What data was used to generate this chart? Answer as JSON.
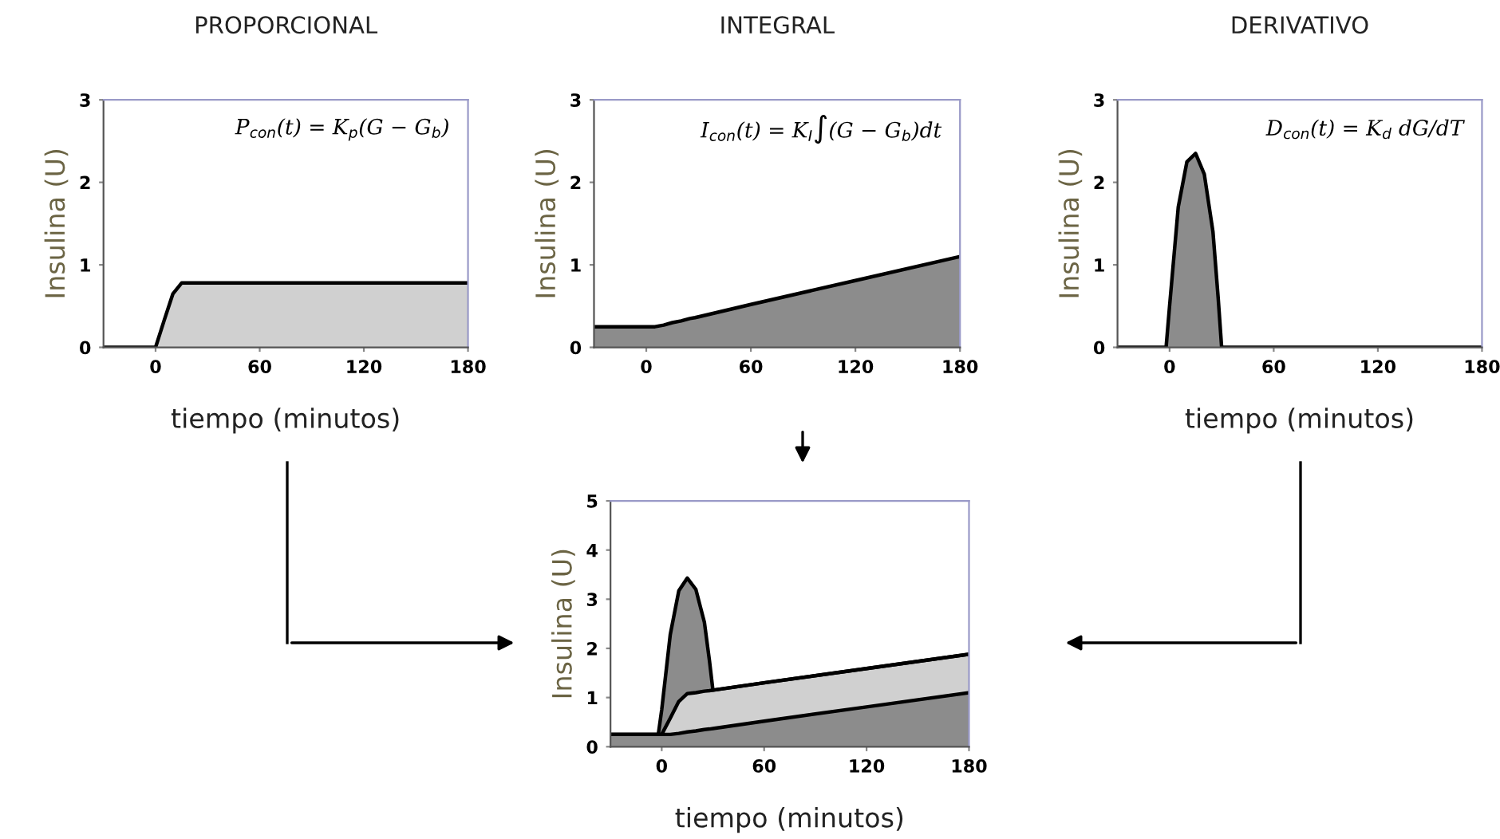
{
  "chart_data": [
    {
      "type": "area",
      "title": "PROPORCIONAL",
      "xlabel": "tiempo (minutos)",
      "ylabel": "Insulina (U)",
      "annotations": [
        "P$_{con}$(t) = K$_{p}$(G − G$_{b}$)"
      ],
      "x": [
        -30,
        -2,
        0,
        5,
        10,
        15,
        20,
        25,
        28,
        30,
        60,
        120,
        180
      ],
      "xlim": [
        -30,
        180
      ],
      "xticks": [
        0,
        60,
        120,
        180
      ],
      "ylim": [
        0,
        3
      ],
      "yticks": [
        0,
        1,
        2,
        3
      ],
      "series": [
        {
          "color": "#d0d0d0",
          "values": [
            0,
            0,
            0,
            0.33,
            0.65,
            0.78,
            0.78,
            0.78,
            0.78,
            0.78,
            0.78,
            0.78,
            0.78
          ]
        }
      ]
    },
    {
      "type": "area",
      "title": "INTEGRAL",
      "ylabel": "Insulina (U)",
      "annotations": [
        "I$_{con}$(t) = K$_{I}$∫(G − G$_{b}$)dt"
      ],
      "x": [
        -30,
        -2,
        0,
        5,
        10,
        15,
        20,
        25,
        28,
        30,
        60,
        120,
        180
      ],
      "xlim": [
        -30,
        180
      ],
      "xticks": [
        0,
        60,
        120,
        180
      ],
      "ylim": [
        0,
        3
      ],
      "yticks": [
        0,
        1,
        2,
        3
      ],
      "series": [
        {
          "color": "#8c8c8c",
          "values": [
            0.25,
            0.25,
            0.25,
            0.25,
            0.27,
            0.3,
            0.32,
            0.35,
            0.36,
            0.37,
            0.52,
            0.81,
            1.1
          ]
        }
      ]
    },
    {
      "type": "area",
      "title": "DERIVATIVO",
      "xlabel": "tiempo (minutos)",
      "ylabel": "Insulina (U)",
      "annotations": [
        "D$_{con}$(t) = K$_{d}$ dG/dT"
      ],
      "x": [
        -30,
        -2,
        0,
        5,
        10,
        15,
        20,
        25,
        28,
        30,
        60,
        120,
        180
      ],
      "xlim": [
        -30,
        180
      ],
      "xticks": [
        0,
        60,
        120,
        180
      ],
      "ylim": [
        0,
        3
      ],
      "yticks": [
        0,
        1,
        2,
        3
      ],
      "series": [
        {
          "color": "#8c8c8c",
          "values": [
            0,
            0,
            0.5,
            1.7,
            2.25,
            2.35,
            2.1,
            1.4,
            0.6,
            0,
            0,
            0,
            0
          ]
        }
      ]
    },
    {
      "type": "area",
      "stacked": true,
      "xlabel": "tiempo (minutos)",
      "ylabel": "Insulina (U)",
      "x": [
        -30,
        -2,
        0,
        5,
        10,
        15,
        20,
        25,
        28,
        30,
        60,
        120,
        180
      ],
      "xlim": [
        -30,
        180
      ],
      "xticks": [
        0,
        60,
        120,
        180
      ],
      "ylim": [
        0,
        5
      ],
      "yticks": [
        0,
        1,
        2,
        3,
        4,
        5
      ],
      "series": [
        {
          "color": "#8c8c8c",
          "values": [
            0.25,
            0.25,
            0.25,
            0.25,
            0.27,
            0.3,
            0.32,
            0.35,
            0.36,
            0.37,
            0.52,
            0.81,
            1.1
          ]
        },
        {
          "color": "#d0d0d0",
          "values": [
            0,
            0,
            0,
            0.33,
            0.65,
            0.78,
            0.78,
            0.78,
            0.78,
            0.78,
            0.78,
            0.78,
            0.78
          ]
        },
        {
          "color": "#8c8c8c",
          "values": [
            0,
            0,
            0.5,
            1.7,
            2.25,
            2.35,
            2.1,
            1.4,
            0.6,
            0,
            0,
            0,
            0
          ]
        }
      ]
    }
  ]
}
